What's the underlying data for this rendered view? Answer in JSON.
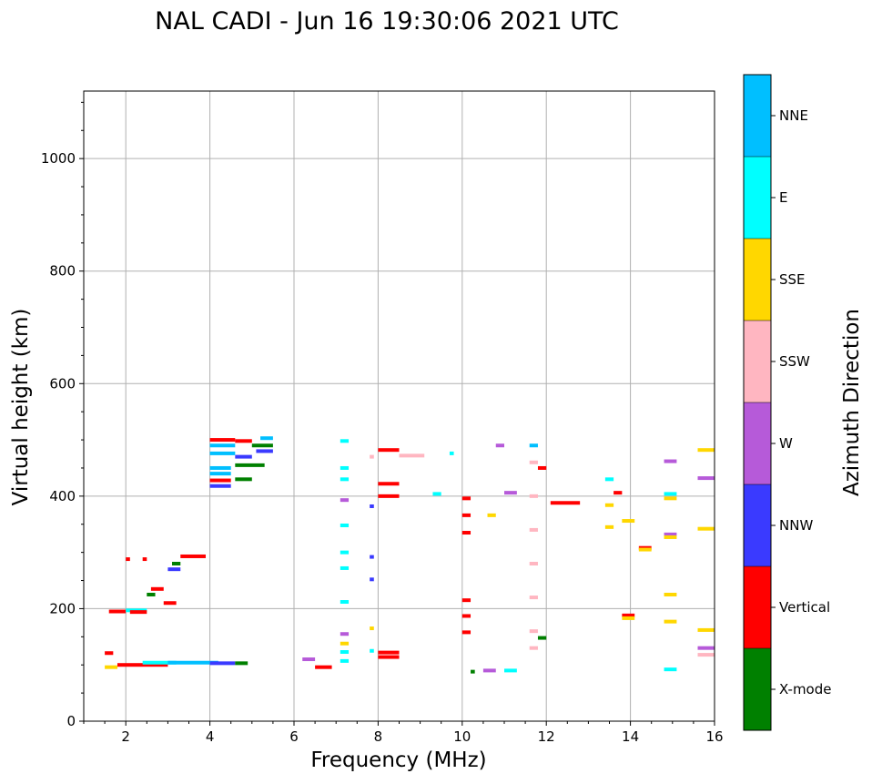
{
  "chart_data": {
    "type": "scatter",
    "title": "NAL CADI - Jun 16 19:30:06 2021 UTC",
    "xlabel": "Frequency (MHz)",
    "ylabel": "Virtual height (km)",
    "xlim": [
      1,
      16
    ],
    "ylim": [
      0,
      1120
    ],
    "xticks": [
      2,
      4,
      6,
      8,
      10,
      12,
      14,
      16
    ],
    "yticks": [
      0,
      200,
      400,
      600,
      800,
      1000
    ],
    "grid": true,
    "colorbar": {
      "label": "Azimuth Direction",
      "categories": [
        {
          "name": "X-mode",
          "color": "#008000"
        },
        {
          "name": "Vertical",
          "color": "#ff0000"
        },
        {
          "name": "NNW",
          "color": "#3a3aff"
        },
        {
          "name": "W",
          "color": "#b65ad9"
        },
        {
          "name": "SSW",
          "color": "#ffb6c1"
        },
        {
          "name": "SSE",
          "color": "#ffd700"
        },
        {
          "name": "E",
          "color": "#00ffff"
        },
        {
          "name": "NNE",
          "color": "#00bfff"
        }
      ]
    },
    "echoes": [
      {
        "f": 1.8,
        "f2": 3.0,
        "h": 100,
        "dir": "Vertical"
      },
      {
        "f": 2.4,
        "f2": 3.2,
        "h": 104,
        "dir": "E"
      },
      {
        "f": 3.0,
        "f2": 4.2,
        "h": 104,
        "dir": "NNE"
      },
      {
        "f": 4.0,
        "f2": 4.6,
        "h": 103,
        "dir": "NNW"
      },
      {
        "f": 4.6,
        "f2": 4.9,
        "h": 103,
        "dir": "X-mode"
      },
      {
        "f": 1.5,
        "f2": 1.8,
        "h": 96,
        "dir": "SSE"
      },
      {
        "f": 1.5,
        "f2": 1.7,
        "h": 121,
        "dir": "Vertical"
      },
      {
        "f": 1.6,
        "f2": 2.0,
        "h": 195,
        "dir": "Vertical"
      },
      {
        "f": 2.0,
        "f2": 2.5,
        "h": 197,
        "dir": "E"
      },
      {
        "f": 2.1,
        "f2": 2.5,
        "h": 194,
        "dir": "Vertical"
      },
      {
        "f": 2.6,
        "f2": 2.9,
        "h": 235,
        "dir": "Vertical"
      },
      {
        "f": 2.5,
        "f2": 2.7,
        "h": 225,
        "dir": "X-mode"
      },
      {
        "f": 2.9,
        "f2": 3.2,
        "h": 210,
        "dir": "Vertical"
      },
      {
        "f": 3.0,
        "f2": 3.3,
        "h": 270,
        "dir": "NNW"
      },
      {
        "f": 3.1,
        "f2": 3.3,
        "h": 280,
        "dir": "X-mode"
      },
      {
        "f": 3.3,
        "f2": 3.9,
        "h": 293,
        "dir": "Vertical"
      },
      {
        "f": 2.0,
        "f2": 2.1,
        "h": 288,
        "dir": "Vertical"
      },
      {
        "f": 2.4,
        "f2": 2.5,
        "h": 288,
        "dir": "Vertical"
      },
      {
        "f": 4.0,
        "f2": 4.6,
        "h": 500,
        "dir": "Vertical"
      },
      {
        "f": 4.0,
        "f2": 4.6,
        "h": 490,
        "dir": "NNE"
      },
      {
        "f": 4.0,
        "f2": 4.6,
        "h": 476,
        "dir": "NNE"
      },
      {
        "f": 4.0,
        "f2": 4.5,
        "h": 450,
        "dir": "NNE"
      },
      {
        "f": 4.0,
        "f2": 4.5,
        "h": 440,
        "dir": "NNE"
      },
      {
        "f": 4.0,
        "f2": 4.5,
        "h": 428,
        "dir": "Vertical"
      },
      {
        "f": 4.0,
        "f2": 4.5,
        "h": 418,
        "dir": "NNW"
      },
      {
        "f": 4.6,
        "f2": 5.0,
        "h": 498,
        "dir": "Vertical"
      },
      {
        "f": 4.6,
        "f2": 5.0,
        "h": 470,
        "dir": "NNW"
      },
      {
        "f": 4.6,
        "f2": 5.3,
        "h": 455,
        "dir": "X-mode"
      },
      {
        "f": 4.6,
        "f2": 5.0,
        "h": 430,
        "dir": "X-mode"
      },
      {
        "f": 5.0,
        "f2": 5.5,
        "h": 490,
        "dir": "X-mode"
      },
      {
        "f": 5.1,
        "f2": 5.5,
        "h": 480,
        "dir": "NNW"
      },
      {
        "f": 5.2,
        "f2": 5.5,
        "h": 503,
        "dir": "NNE"
      },
      {
        "f": 6.2,
        "f2": 6.5,
        "h": 110,
        "dir": "W"
      },
      {
        "f": 6.5,
        "f2": 6.9,
        "h": 96,
        "dir": "Vertical"
      },
      {
        "f": 7.1,
        "f2": 7.3,
        "h": 498,
        "dir": "E"
      },
      {
        "f": 7.1,
        "f2": 7.3,
        "h": 450,
        "dir": "E"
      },
      {
        "f": 7.1,
        "f2": 7.3,
        "h": 430,
        "dir": "E"
      },
      {
        "f": 7.1,
        "f2": 7.3,
        "h": 393,
        "dir": "W"
      },
      {
        "f": 7.1,
        "f2": 7.3,
        "h": 348,
        "dir": "E"
      },
      {
        "f": 7.1,
        "f2": 7.3,
        "h": 300,
        "dir": "E"
      },
      {
        "f": 7.1,
        "f2": 7.3,
        "h": 272,
        "dir": "E"
      },
      {
        "f": 7.1,
        "f2": 7.3,
        "h": 212,
        "dir": "E"
      },
      {
        "f": 7.1,
        "f2": 7.3,
        "h": 155,
        "dir": "W"
      },
      {
        "f": 7.1,
        "f2": 7.3,
        "h": 138,
        "dir": "SSE"
      },
      {
        "f": 7.1,
        "f2": 7.3,
        "h": 123,
        "dir": "E"
      },
      {
        "f": 7.1,
        "f2": 7.3,
        "h": 107,
        "dir": "E"
      },
      {
        "f": 7.8,
        "f2": 7.9,
        "h": 470,
        "dir": "SSW"
      },
      {
        "f": 7.8,
        "f2": 7.9,
        "h": 382,
        "dir": "NNW"
      },
      {
        "f": 7.8,
        "f2": 7.9,
        "h": 292,
        "dir": "NNW"
      },
      {
        "f": 7.8,
        "f2": 7.9,
        "h": 252,
        "dir": "NNW"
      },
      {
        "f": 7.8,
        "f2": 7.9,
        "h": 165,
        "dir": "SSE"
      },
      {
        "f": 7.8,
        "f2": 7.9,
        "h": 125,
        "dir": "E"
      },
      {
        "f": 8.0,
        "f2": 8.5,
        "h": 482,
        "dir": "Vertical"
      },
      {
        "f": 8.5,
        "f2": 9.1,
        "h": 472,
        "dir": "SSW"
      },
      {
        "f": 8.0,
        "f2": 8.5,
        "h": 422,
        "dir": "Vertical"
      },
      {
        "f": 8.0,
        "f2": 8.5,
        "h": 400,
        "dir": "Vertical"
      },
      {
        "f": 8.0,
        "f2": 8.5,
        "h": 122,
        "dir": "Vertical"
      },
      {
        "f": 8.0,
        "f2": 8.5,
        "h": 114,
        "dir": "Vertical"
      },
      {
        "f": 9.3,
        "f2": 9.5,
        "h": 404,
        "dir": "E"
      },
      {
        "f": 9.7,
        "f2": 9.8,
        "h": 476,
        "dir": "E"
      },
      {
        "f": 10.0,
        "f2": 10.2,
        "h": 396,
        "dir": "Vertical"
      },
      {
        "f": 10.0,
        "f2": 10.2,
        "h": 366,
        "dir": "Vertical"
      },
      {
        "f": 10.0,
        "f2": 10.2,
        "h": 335,
        "dir": "Vertical"
      },
      {
        "f": 10.0,
        "f2": 10.2,
        "h": 215,
        "dir": "Vertical"
      },
      {
        "f": 10.0,
        "f2": 10.2,
        "h": 187,
        "dir": "Vertical"
      },
      {
        "f": 10.0,
        "f2": 10.2,
        "h": 158,
        "dir": "Vertical"
      },
      {
        "f": 10.2,
        "f2": 10.3,
        "h": 88,
        "dir": "X-mode"
      },
      {
        "f": 10.5,
        "f2": 10.8,
        "h": 90,
        "dir": "W"
      },
      {
        "f": 10.8,
        "f2": 11.0,
        "h": 490,
        "dir": "W"
      },
      {
        "f": 10.6,
        "f2": 10.8,
        "h": 366,
        "dir": "SSE"
      },
      {
        "f": 11.0,
        "f2": 11.3,
        "h": 406,
        "dir": "W"
      },
      {
        "f": 11.0,
        "f2": 11.3,
        "h": 90,
        "dir": "E"
      },
      {
        "f": 11.6,
        "f2": 11.8,
        "h": 490,
        "dir": "NNE"
      },
      {
        "f": 11.6,
        "f2": 11.8,
        "h": 460,
        "dir": "SSW"
      },
      {
        "f": 11.6,
        "f2": 11.8,
        "h": 400,
        "dir": "SSW"
      },
      {
        "f": 11.6,
        "f2": 11.8,
        "h": 340,
        "dir": "SSW"
      },
      {
        "f": 11.6,
        "f2": 11.8,
        "h": 280,
        "dir": "SSW"
      },
      {
        "f": 11.6,
        "f2": 11.8,
        "h": 220,
        "dir": "SSW"
      },
      {
        "f": 11.6,
        "f2": 11.8,
        "h": 160,
        "dir": "SSW"
      },
      {
        "f": 11.6,
        "f2": 11.8,
        "h": 130,
        "dir": "SSW"
      },
      {
        "f": 11.8,
        "f2": 12.0,
        "h": 148,
        "dir": "X-mode"
      },
      {
        "f": 11.8,
        "f2": 12.0,
        "h": 450,
        "dir": "Vertical"
      },
      {
        "f": 12.1,
        "f2": 12.8,
        "h": 388,
        "dir": "Vertical"
      },
      {
        "f": 13.4,
        "f2": 13.6,
        "h": 430,
        "dir": "E"
      },
      {
        "f": 13.6,
        "f2": 13.8,
        "h": 406,
        "dir": "Vertical"
      },
      {
        "f": 13.4,
        "f2": 13.6,
        "h": 384,
        "dir": "SSE"
      },
      {
        "f": 13.8,
        "f2": 14.1,
        "h": 356,
        "dir": "SSE"
      },
      {
        "f": 13.4,
        "f2": 13.6,
        "h": 345,
        "dir": "SSE"
      },
      {
        "f": 14.2,
        "f2": 14.5,
        "h": 308,
        "dir": "Vertical"
      },
      {
        "f": 14.2,
        "f2": 14.5,
        "h": 305,
        "dir": "SSE"
      },
      {
        "f": 13.8,
        "f2": 14.1,
        "h": 188,
        "dir": "Vertical"
      },
      {
        "f": 13.8,
        "f2": 14.1,
        "h": 183,
        "dir": "SSE"
      },
      {
        "f": 14.8,
        "f2": 15.1,
        "h": 462,
        "dir": "W"
      },
      {
        "f": 14.8,
        "f2": 15.1,
        "h": 404,
        "dir": "E"
      },
      {
        "f": 14.8,
        "f2": 15.1,
        "h": 396,
        "dir": "SSE"
      },
      {
        "f": 14.8,
        "f2": 15.1,
        "h": 332,
        "dir": "W"
      },
      {
        "f": 14.8,
        "f2": 15.1,
        "h": 327,
        "dir": "SSE"
      },
      {
        "f": 14.8,
        "f2": 15.1,
        "h": 225,
        "dir": "SSE"
      },
      {
        "f": 14.8,
        "f2": 15.1,
        "h": 177,
        "dir": "SSE"
      },
      {
        "f": 14.8,
        "f2": 15.1,
        "h": 92,
        "dir": "E"
      },
      {
        "f": 15.6,
        "f2": 16.0,
        "h": 482,
        "dir": "SSE"
      },
      {
        "f": 15.6,
        "f2": 16.0,
        "h": 432,
        "dir": "W"
      },
      {
        "f": 15.6,
        "f2": 16.0,
        "h": 342,
        "dir": "SSE"
      },
      {
        "f": 15.6,
        "f2": 16.0,
        "h": 162,
        "dir": "SSE"
      },
      {
        "f": 15.6,
        "f2": 16.0,
        "h": 130,
        "dir": "W"
      },
      {
        "f": 15.6,
        "f2": 16.0,
        "h": 118,
        "dir": "SSW"
      }
    ]
  }
}
